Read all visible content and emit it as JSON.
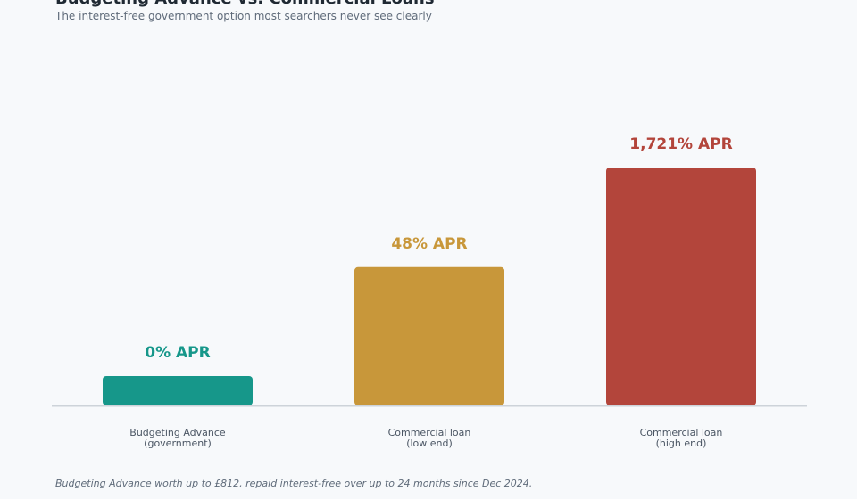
{
  "header": {
    "title": "Budgeting Advance vs. Commercial Loans",
    "subtitle": "The interest-free government option most searchers never see clearly"
  },
  "footnote": "Budgeting Advance worth up to £812, repaid interest-free over up to 24 months since Dec 2024.",
  "chart_data": {
    "type": "bar",
    "scale": "log",
    "categories": [
      [
        "Budgeting Advance",
        "(government)"
      ],
      [
        "Commercial loan",
        "(low end)"
      ],
      [
        "Commercial loan",
        "(high end)"
      ]
    ],
    "values": [
      0,
      48,
      1721
    ],
    "value_labels": [
      "0% APR",
      "48% APR",
      "1,721% APR"
    ],
    "unit": "% APR",
    "colors": [
      "#16978a",
      "#c8973a",
      "#b3453b"
    ],
    "axis_color": "#cdd3d9",
    "grid": false,
    "legend": "none"
  }
}
